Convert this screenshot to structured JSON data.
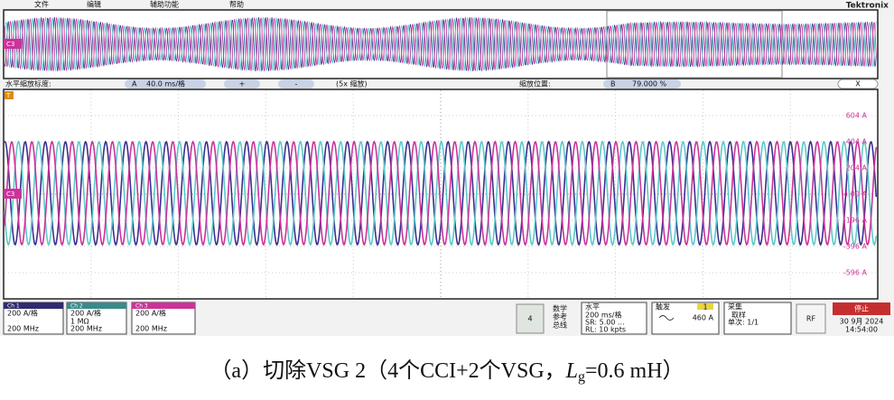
{
  "menu": {
    "items": [
      "文件",
      "编辑",
      "辅助功能",
      "帮助"
    ],
    "brand": "Tektronix"
  },
  "overview": {
    "channel_marker": "C3"
  },
  "zoom_bar": {
    "scale_label": "水平缩放标度:",
    "scale_badge": "A",
    "scale_value": "40.0 ms/格",
    "plus": "+",
    "minus": "-",
    "zoom_factor": "(5x 缩放)",
    "position_label": "缩放位置:",
    "position_badge": "B",
    "position_value": "79.000 %",
    "close": "X"
  },
  "plot": {
    "channel_marker": "C3",
    "trigger_marker": "T",
    "right_labels": [
      "604 A",
      "404 A",
      "204 A",
      "4.00 A",
      "-196 A",
      "-396 A",
      "-596 A"
    ]
  },
  "status_bar": {
    "ch1": {
      "title": "Ch 1",
      "lines": [
        "200 A/格",
        "200 MHz"
      ]
    },
    "ch2": {
      "title": "Ch 2",
      "lines": [
        "200 A/格",
        "1 MΩ",
        "200 MHz"
      ]
    },
    "ch3": {
      "title": "Ch 3",
      "lines": [
        "200 A/格",
        "200 MHz"
      ]
    },
    "math_button": "4",
    "math_menu": [
      "数学",
      "参考",
      "总线"
    ],
    "horizontal": {
      "title": "水平",
      "lines": [
        "200 ms/格",
        "SR: 5.00 ...",
        "RL: 10 kpts"
      ]
    },
    "trigger": {
      "title": "触发",
      "source": "1",
      "level": "460 A"
    },
    "acquire": {
      "title": "采集",
      "lines": [
        "取样",
        "单次: 1/1"
      ]
    },
    "rf": "RF",
    "run_state": "停止",
    "date": "30 9月 2024",
    "time": "14:54:00"
  },
  "caption": {
    "prefix": "（a）切除VSG 2（4个CCI+2个VSG，",
    "symbol": "L",
    "subscript": "g",
    "suffix": "=0.6 mH）"
  }
}
